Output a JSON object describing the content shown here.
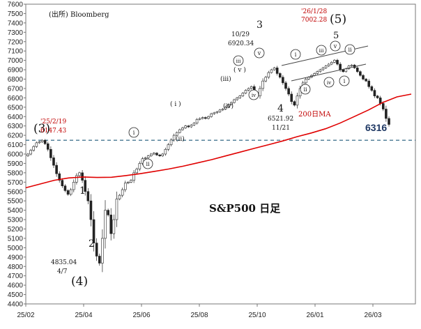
{
  "chart_data": {
    "type": "candlestick",
    "title": "S&P500 日足",
    "source": "(出所) Bloomberg",
    "ylim": [
      4400,
      7600
    ],
    "yticks": [
      4400,
      4500,
      4600,
      4700,
      4800,
      4900,
      5000,
      5100,
      5200,
      5300,
      5400,
      5500,
      5600,
      5700,
      5800,
      5900,
      6000,
      6100,
      6200,
      6300,
      6400,
      6500,
      6600,
      6700,
      6800,
      6900,
      7000,
      7100,
      7200,
      7300,
      7400,
      7500,
      7600
    ],
    "x_labels": [
      "25/02",
      "25/04",
      "25/06",
      "25/08",
      "25/10",
      "26/01",
      "26/03"
    ],
    "series": [
      {
        "name": "S&P500",
        "kind": "candles",
        "values": [
          6000,
          6040,
          6080,
          6120,
          6130,
          6147,
          6110,
          6050,
          5960,
          5880,
          5790,
          5720,
          5660,
          5610,
          5570,
          5620,
          5700,
          5770,
          5800,
          5720,
          5600,
          5500,
          5300,
          5050,
          4910,
          4835,
          5100,
          5400,
          5350,
          5150,
          5300,
          5520,
          5560,
          5620,
          5690,
          5700,
          5720,
          5800,
          5840,
          5900,
          5950,
          5960,
          5980,
          6000,
          6010,
          5990,
          5980,
          6000,
          6050,
          6100,
          6150,
          6200,
          6230,
          6260,
          6280,
          6300,
          6290,
          6310,
          6330,
          6370,
          6380,
          6390,
          6380,
          6400,
          6430,
          6440,
          6450,
          6470,
          6480,
          6500,
          6530,
          6550,
          6580,
          6600,
          6620,
          6650,
          6680,
          6700,
          6720,
          6660,
          6620,
          6700,
          6780,
          6820,
          6870,
          6900,
          6920,
          6860,
          6820,
          6760,
          6700,
          6640,
          6560,
          6522,
          6620,
          6700,
          6760,
          6800,
          6820,
          6840,
          6860,
          6880,
          6900,
          6920,
          6940,
          6960,
          6980,
          7002,
          6960,
          6900,
          6880,
          6910,
          6940,
          6950,
          6920,
          6880,
          6840,
          6800,
          6780,
          6720,
          6680,
          6620,
          6600,
          6540,
          6480,
          6380,
          6316
        ]
      },
      {
        "name": "200日MA",
        "kind": "line",
        "color": "#e00000",
        "values": [
          5640,
          5680,
          5720,
          5745,
          5755,
          5750,
          5752,
          5770,
          5790,
          5815,
          5840,
          5870,
          5905,
          5940,
          5980,
          6020,
          6060,
          6100,
          6140,
          6185,
          6225,
          6270,
          6330,
          6400,
          6470,
          6550,
          6610,
          6640
        ]
      }
    ],
    "reference_line": {
      "value": 6147.43,
      "style": "dashed",
      "color": "#1f5a7a"
    },
    "annotations": [
      {
        "label": "(3)",
        "size": "large"
      },
      {
        "label": "'25/2/19",
        "color": "red"
      },
      {
        "label": "6147.43",
        "color": "red"
      },
      {
        "label": "1"
      },
      {
        "label": "2"
      },
      {
        "label": "4835.04"
      },
      {
        "label": "4/7"
      },
      {
        "label": "(4)",
        "size": "large"
      },
      {
        "label": "i",
        "style": "circled"
      },
      {
        "label": "ii",
        "style": "circled"
      },
      {
        "label": "( i )"
      },
      {
        "label": "(ii)"
      },
      {
        "label": "(iii)"
      },
      {
        "label": "(iv)"
      },
      {
        "label": "( v )"
      },
      {
        "label": "iii",
        "style": "circled"
      },
      {
        "label": "iv",
        "style": "circled"
      },
      {
        "label": "v",
        "style": "circled"
      },
      {
        "label": "3"
      },
      {
        "label": "10/29"
      },
      {
        "label": "6920.34"
      },
      {
        "label": "4"
      },
      {
        "label": "6521.92"
      },
      {
        "label": "11/21"
      },
      {
        "label": "(5)",
        "size": "large"
      },
      {
        "label": "'26/1/28",
        "color": "red"
      },
      {
        "label": "7002.28",
        "color": "red"
      },
      {
        "label": "5"
      },
      {
        "label": "i",
        "style": "circled"
      },
      {
        "label": "ii",
        "style": "circled"
      },
      {
        "label": "iii",
        "style": "circled"
      },
      {
        "label": "iv",
        "style": "circled"
      },
      {
        "label": "v",
        "style": "circled"
      },
      {
        "label": "ii",
        "style": "circled"
      },
      {
        "label": "i",
        "style": "circled"
      },
      {
        "label": "200日MA",
        "color": "red"
      },
      {
        "label": "6316",
        "color": "navy"
      }
    ]
  }
}
